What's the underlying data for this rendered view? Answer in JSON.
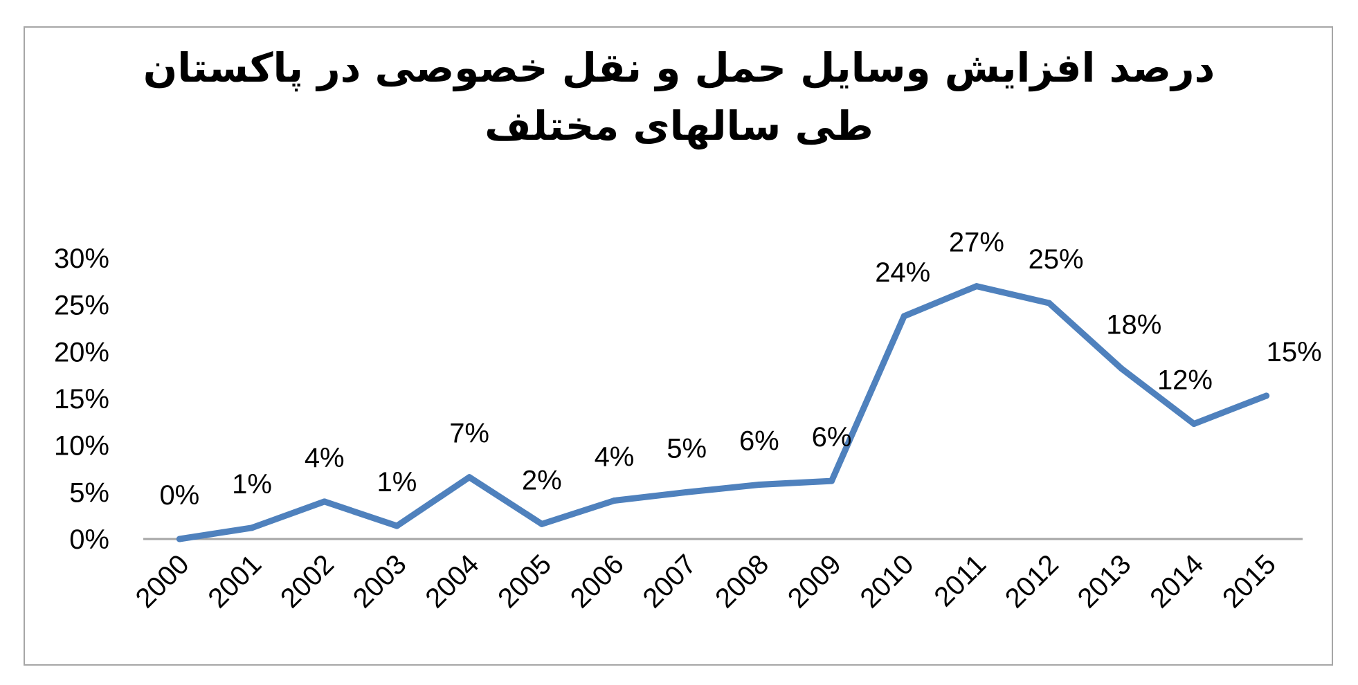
{
  "chart_data": {
    "type": "line",
    "title_lines": [
      "درصد افزایش وسایل حمل و نقل خصوصی در پاکستان",
      "طی سالهای مختلف"
    ],
    "categories": [
      "2000",
      "2001",
      "2002",
      "2003",
      "2004",
      "2005",
      "2006",
      "2007",
      "2008",
      "2009",
      "2010",
      "2011",
      "2012",
      "2013",
      "2014",
      "2015"
    ],
    "series": [
      {
        "values": [
          0,
          1.2,
          4.0,
          1.4,
          6.6,
          1.6,
          4.1,
          5.0,
          5.8,
          6.2,
          23.8,
          27.0,
          25.2,
          18.2,
          12.3,
          15.3
        ],
        "data_labels": [
          "0%",
          "1%",
          "4%",
          "1%",
          "7%",
          "2%",
          "4%",
          "5%",
          "6%",
          "6%",
          "24%",
          "27%",
          "25%",
          "18%",
          "12%",
          "15%"
        ]
      }
    ],
    "y_ticks": [
      "0%",
      "5%",
      "10%",
      "15%",
      "20%",
      "25%",
      "30%"
    ],
    "ylim": [
      0,
      30
    ],
    "grid": false,
    "legend": "none",
    "line_color": "#4f81bd",
    "axis_color": "#a6a6a6",
    "frame_color": "#a6a6a6"
  }
}
